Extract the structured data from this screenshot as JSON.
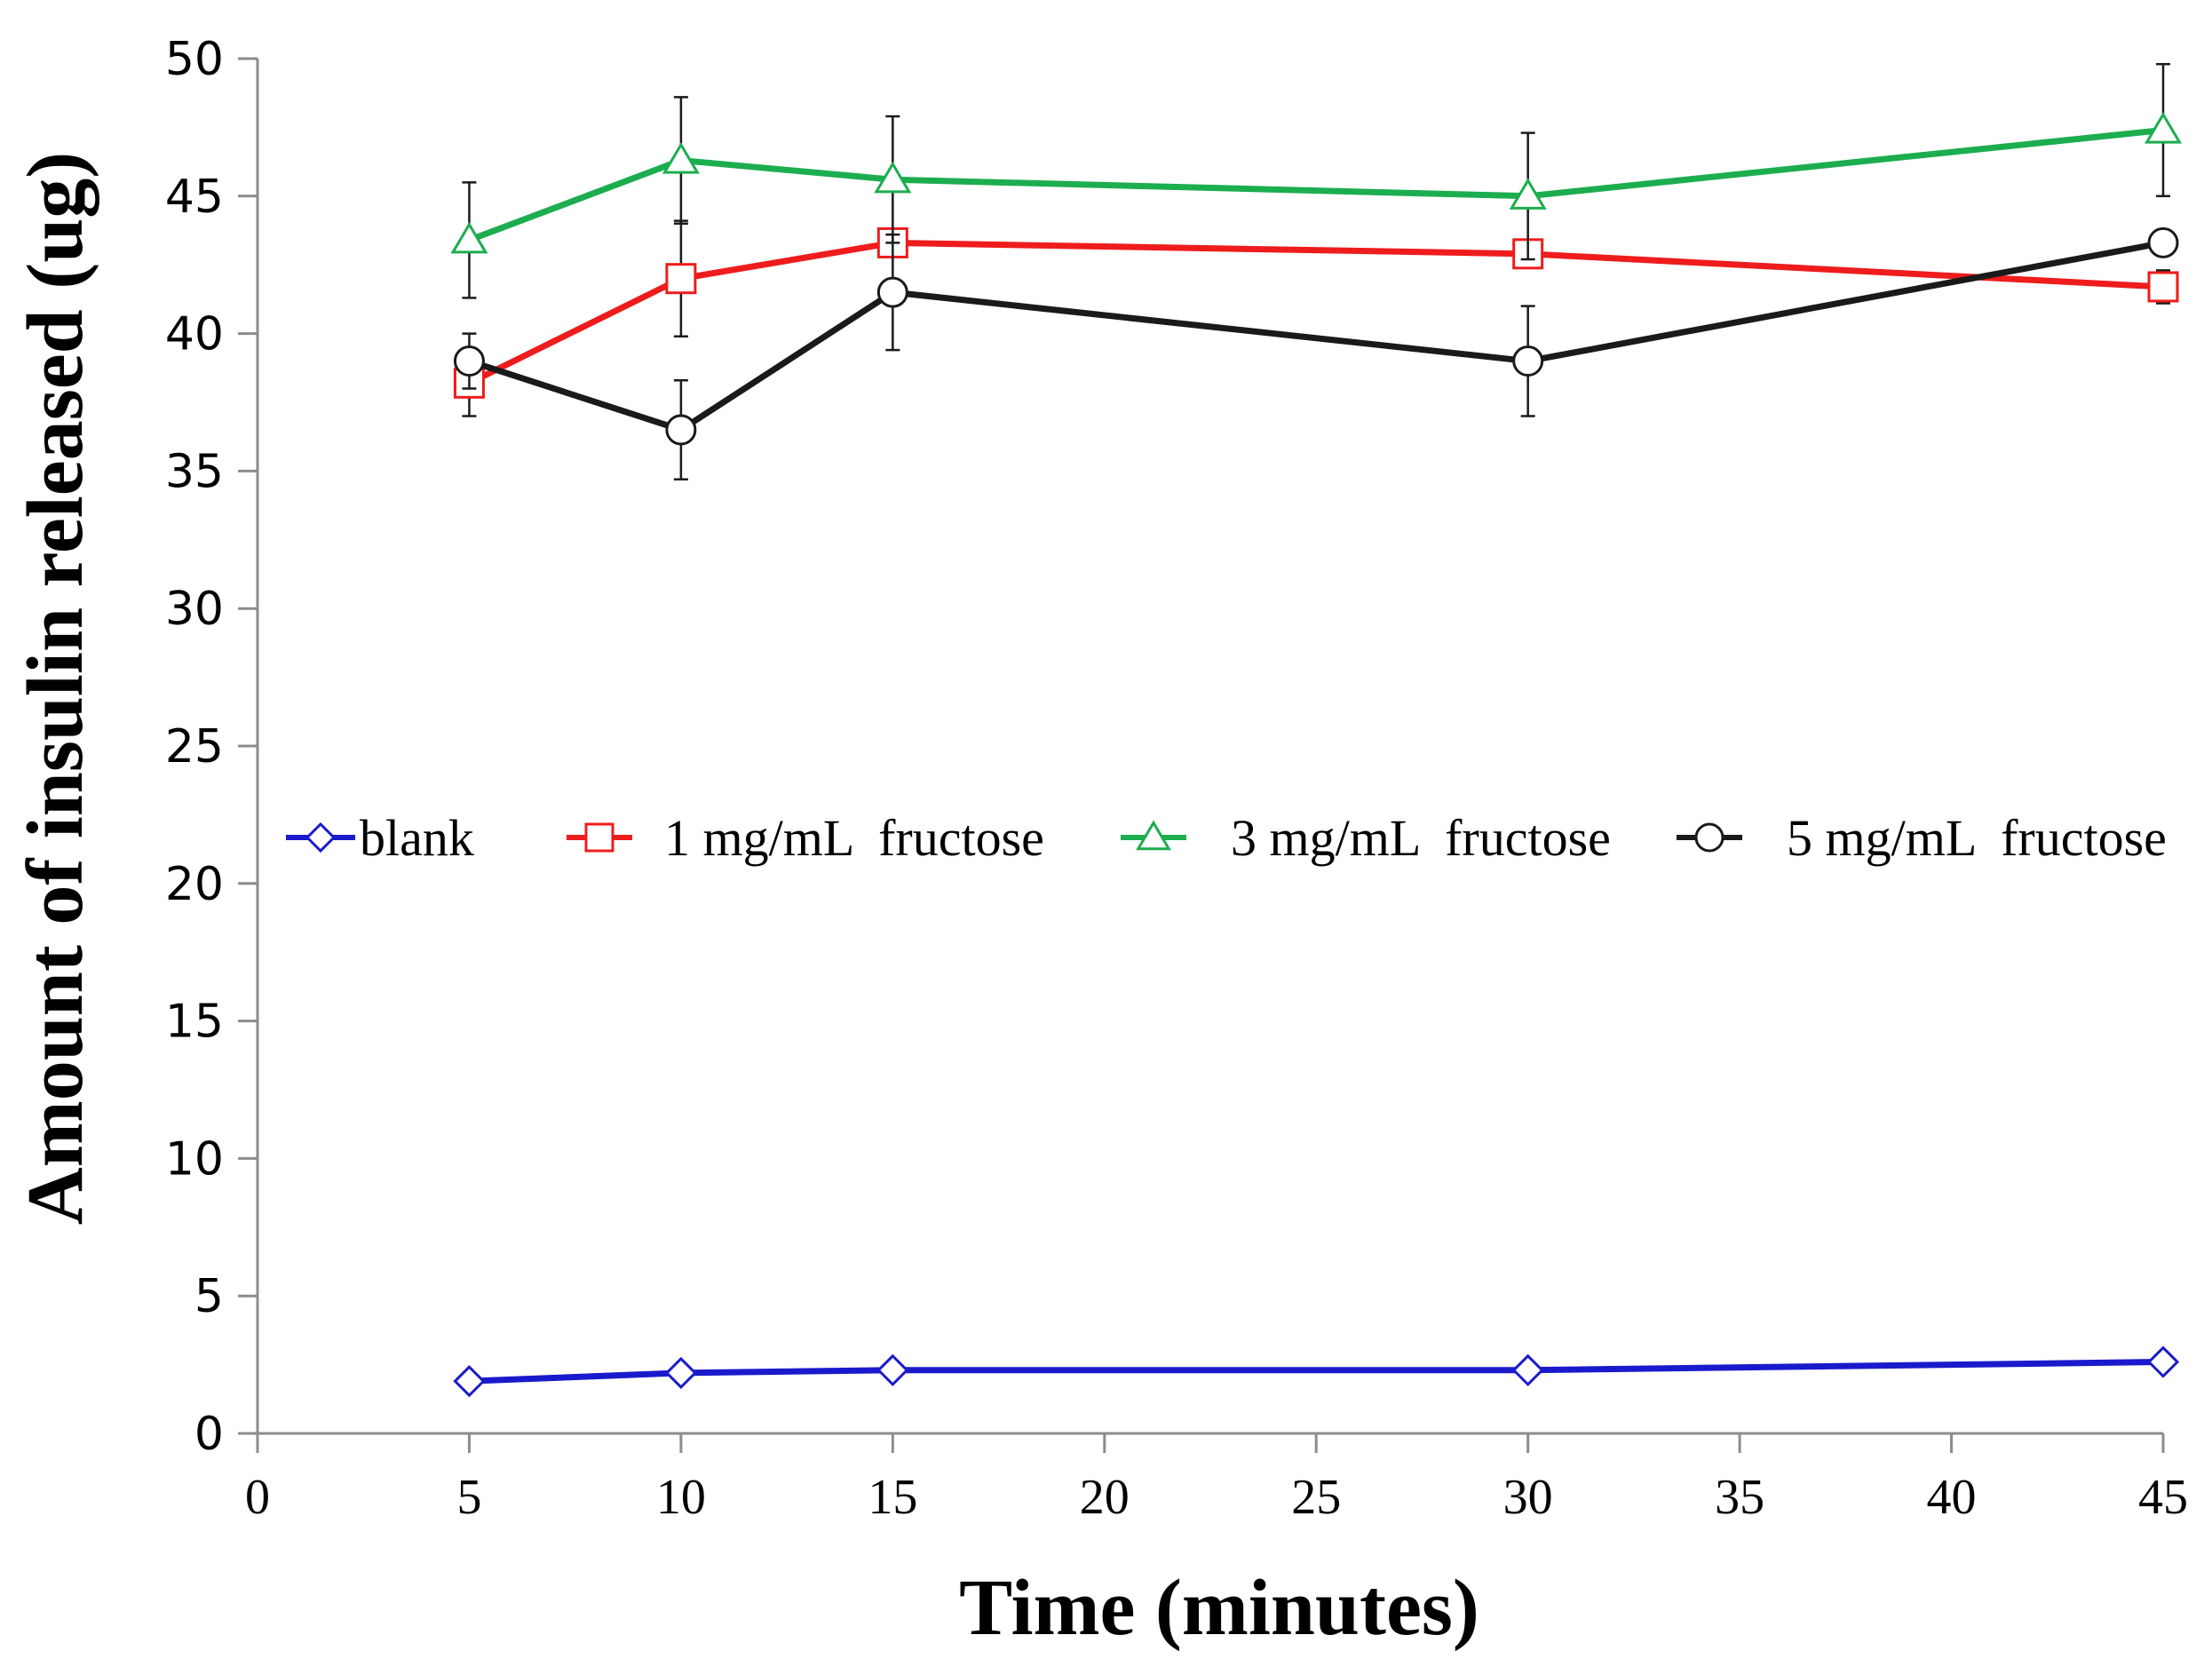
{
  "chart_data": {
    "type": "line",
    "xlabel": "Time (minutes)",
    "ylabel": "Amount of insulin released (ug)",
    "xlim": [
      0,
      45
    ],
    "ylim": [
      0,
      50
    ],
    "xticks": [
      0,
      5,
      10,
      15,
      20,
      25,
      30,
      35,
      40,
      45
    ],
    "yticks": [
      0,
      5,
      10,
      15,
      20,
      25,
      30,
      35,
      40,
      45,
      50
    ],
    "x": [
      5,
      10,
      15,
      30,
      45
    ],
    "grid": false,
    "legend_position": "middle",
    "series": [
      {
        "name": "blank",
        "marker": "diamond-icon",
        "color": "#1a1acc",
        "values": [
          1.9,
          2.2,
          2.3,
          2.3,
          2.6
        ],
        "errors": [
          0,
          0,
          0,
          0,
          0
        ]
      },
      {
        "name": "1 mg/mL  fructose",
        "marker": "square-icon",
        "color": "#ee1c1c",
        "values": [
          38.2,
          42.0,
          43.3,
          42.9,
          41.7
        ],
        "errors": [
          1.2,
          2.1,
          0,
          0,
          0.6
        ]
      },
      {
        "name": "3 mg/mL  fructose",
        "marker": "triangle-icon",
        "color": "#1cad4f",
        "values": [
          43.4,
          46.3,
          45.6,
          45.0,
          47.4
        ],
        "errors": [
          2.1,
          2.3,
          2.3,
          2.3,
          2.4
        ]
      },
      {
        "name": "5 mg/mL  fructose",
        "marker": "circle-icon",
        "color": "#1a1a1a",
        "values": [
          39.0,
          36.5,
          41.5,
          39.0,
          43.3
        ],
        "errors": [
          1.0,
          1.8,
          2.1,
          2.0,
          0
        ]
      }
    ]
  }
}
